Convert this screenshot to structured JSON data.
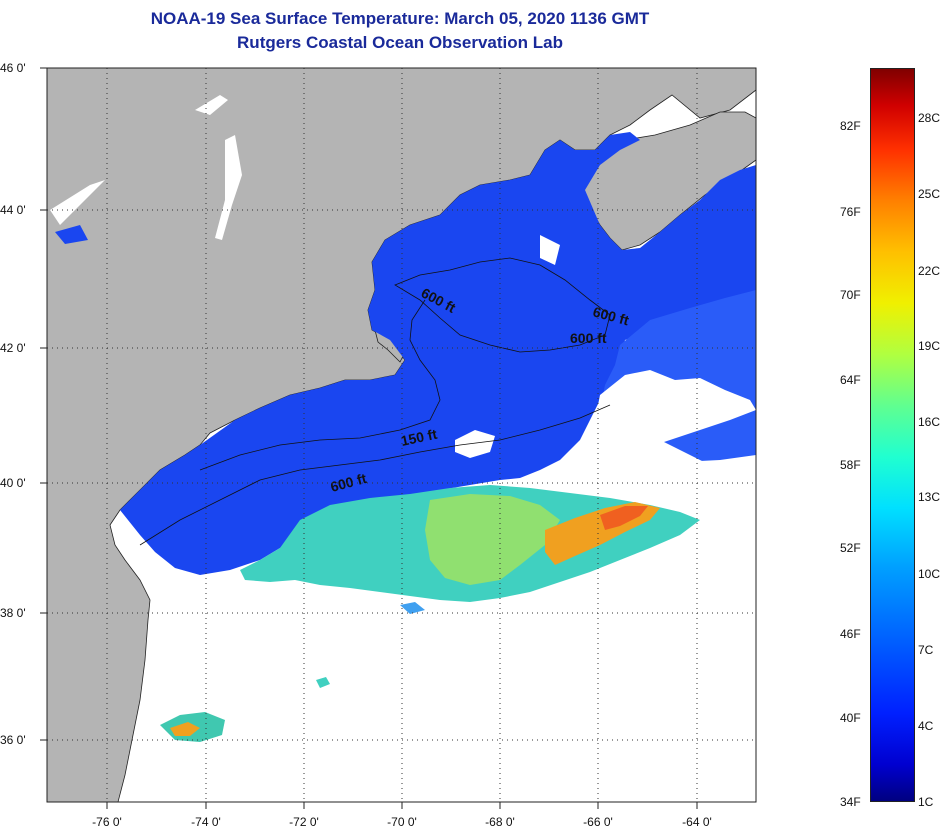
{
  "title": {
    "line1": "NOAA-19 Sea Surface Temperature:  March 05, 2020 1136 GMT",
    "line2": "Rutgers Coastal Ocean Observation Lab"
  },
  "map": {
    "lat_range": [
      35,
      46
    ],
    "lon_range": [
      -77,
      -62.3
    ],
    "lat_labels": [
      "46 0'",
      "44 0'",
      "42 0'",
      "40 0'",
      "38 0'",
      "36 0'"
    ],
    "lon_labels": [
      "-76 0'",
      "-74 0'",
      "-72 0'",
      "-70 0'",
      "-68 0'",
      "-66 0'",
      "-64 0'"
    ],
    "contour_labels": [
      "600 ft",
      "600 ft",
      "600 ft",
      "150 ft",
      "600 ft"
    ],
    "colors": {
      "land": "#b4b4b4",
      "cloud": "#ffffff",
      "cold_shelf": "#1a46f0",
      "gulf_stream_warm": "#f09020",
      "slope_water": "#40d0c0"
    }
  },
  "colorbar": {
    "fahrenheit": [
      "82F",
      "76F",
      "70F",
      "64F",
      "58F",
      "52F",
      "46F",
      "40F",
      "34F"
    ],
    "celsius": [
      "28C",
      "25C",
      "22C",
      "19C",
      "16C",
      "13C",
      "10C",
      "7C",
      "4C",
      "1C"
    ]
  }
}
